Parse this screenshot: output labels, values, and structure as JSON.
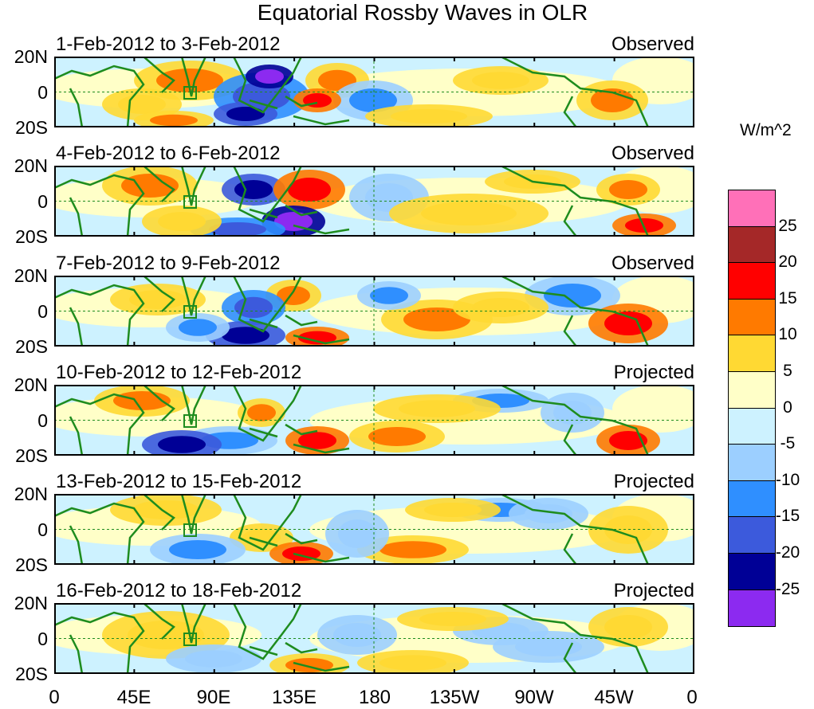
{
  "title": "Equatorial Rossby Waves in OLR",
  "units": "W/m^2",
  "y_ticks": [
    "20N",
    "0",
    "20S"
  ],
  "x_ticks": [
    "0",
    "45E",
    "90E",
    "135E",
    "180",
    "135W",
    "90W",
    "45W",
    "0"
  ],
  "panels": [
    {
      "date_range": "1-Feb-2012 to 3-Feb-2012",
      "mode": "Observed"
    },
    {
      "date_range": "4-Feb-2012 to 6-Feb-2012",
      "mode": "Observed"
    },
    {
      "date_range": "7-Feb-2012 to 9-Feb-2012",
      "mode": "Observed"
    },
    {
      "date_range": "10-Feb-2012 to 12-Feb-2012",
      "mode": "Projected"
    },
    {
      "date_range": "13-Feb-2012 to 15-Feb-2012",
      "mode": "Projected"
    },
    {
      "date_range": "16-Feb-2012 to 18-Feb-2012",
      "mode": "Projected"
    }
  ],
  "legend": {
    "labels": [
      "25",
      "20",
      "15",
      "10",
      "5",
      "0",
      "-5",
      "-10",
      "-15",
      "-20",
      "-25"
    ],
    "colors": [
      "#ff70b8",
      "#a52828",
      "#ff0000",
      "#ff7a00",
      "#ffd933",
      "#ffffc8",
      "#cdf2ff",
      "#9ccfff",
      "#2f8fff",
      "#3c5adc",
      "#000096",
      "#8c2af0"
    ]
  },
  "colors": {
    "coast": "#1e8c1e",
    "equator": "#1e8c1e"
  }
}
